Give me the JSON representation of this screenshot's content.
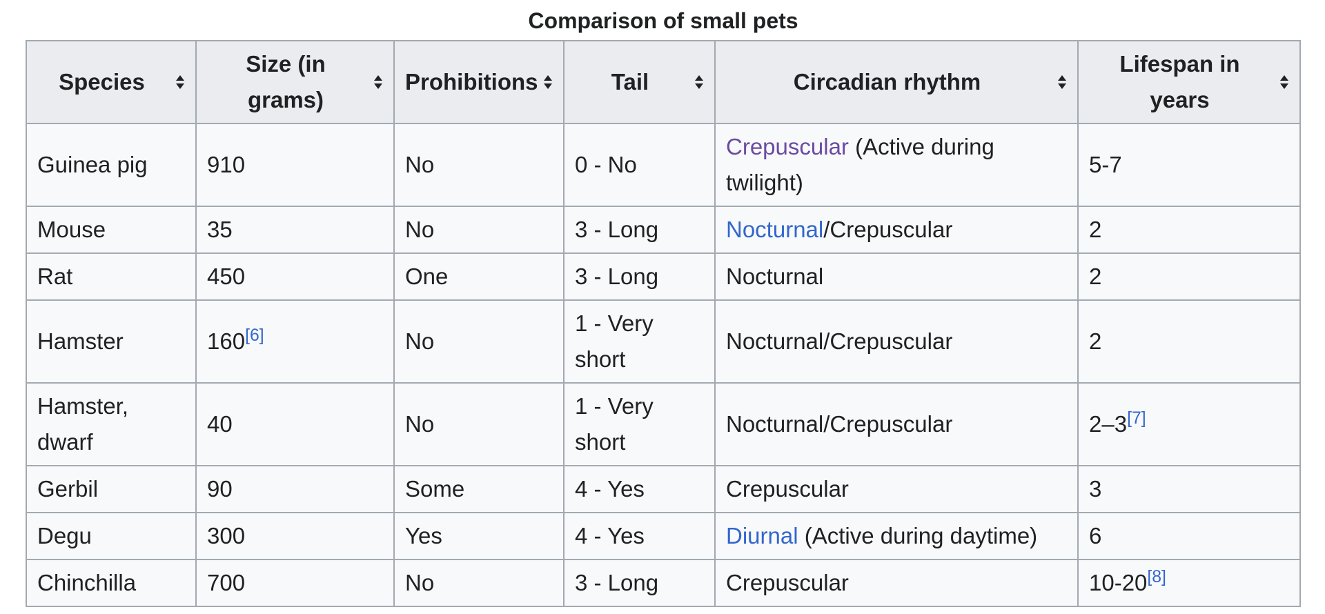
{
  "title": "Comparison of small pets",
  "table": {
    "headers": [
      "Species",
      "Size (in grams)",
      "Prohibitions",
      "Tail",
      "Circadian rhythm",
      "Lifespan in years"
    ],
    "rows": [
      [
        "Guinea pig",
        "910",
        "No",
        "0 - No",
        [
          {
            "text": "Crepuscular",
            "link": "visited"
          },
          {
            "text": " (Active during twilight)"
          }
        ],
        "5-7"
      ],
      [
        "Mouse",
        "35",
        "No",
        "3 - Long",
        [
          {
            "text": "Nocturnal",
            "link": "unvisited"
          },
          {
            "text": "/Crepuscular"
          }
        ],
        "2"
      ],
      [
        "Rat",
        "450",
        "One",
        "3 - Long",
        "Nocturnal",
        "2"
      ],
      [
        "Hamster",
        [
          {
            "text": "160"
          },
          {
            "text": "[6]",
            "ref": true
          }
        ],
        "No",
        "1 - Very short",
        "Nocturnal/Crepuscular",
        "2"
      ],
      [
        "Hamster, dwarf",
        "40",
        "No",
        "1 - Very short",
        "Nocturnal/Crepuscular",
        [
          {
            "text": "2–3"
          },
          {
            "text": "[7]",
            "ref": true
          }
        ]
      ],
      [
        "Gerbil",
        "90",
        "Some",
        "4 - Yes",
        "Crepuscular",
        "3"
      ],
      [
        "Degu",
        "300",
        "Yes",
        "4 - Yes",
        [
          {
            "text": "Diurnal",
            "link": "unvisited"
          },
          {
            "text": " (Active during daytime)"
          }
        ],
        "6"
      ],
      [
        "Chinchilla",
        "700",
        "No",
        "3 - Long",
        "Crepuscular",
        [
          {
            "text": "10-20"
          },
          {
            "text": "[8]",
            "ref": true
          }
        ]
      ]
    ]
  }
}
